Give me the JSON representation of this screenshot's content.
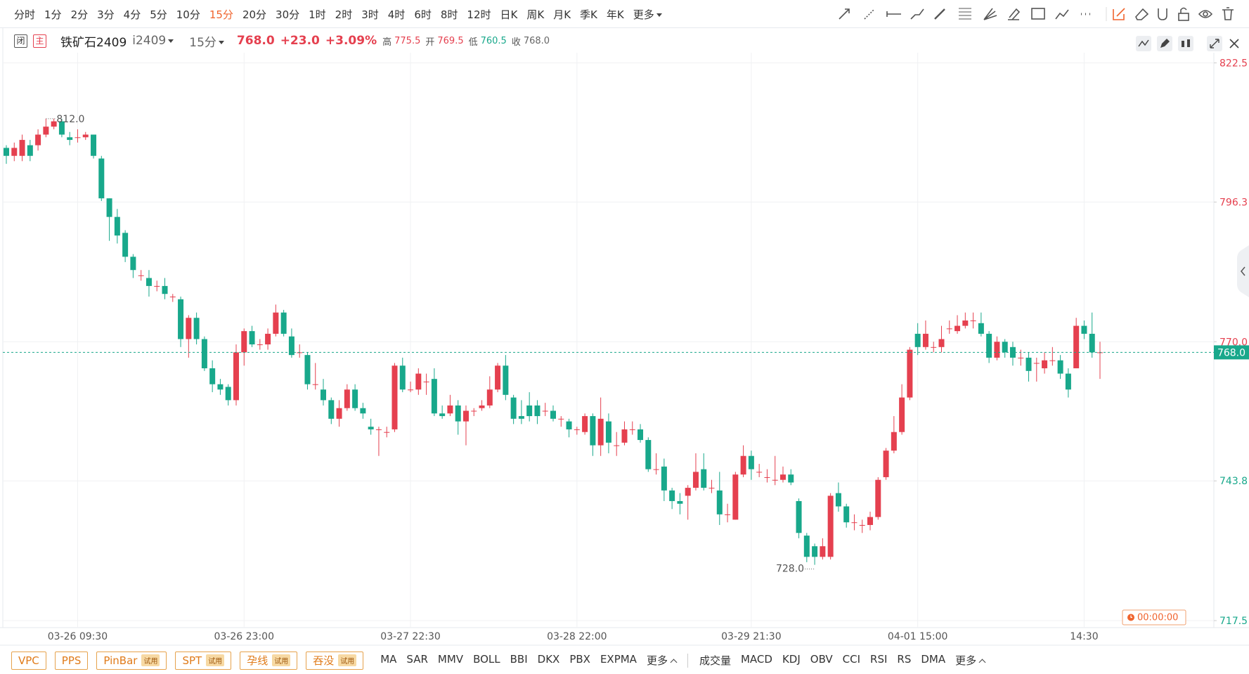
{
  "toolbar": {
    "periods": [
      "分时",
      "1分",
      "2分",
      "3分",
      "4分",
      "5分",
      "10分",
      "15分",
      "20分",
      "30分",
      "1时",
      "2时",
      "3时",
      "4时",
      "6时",
      "8时",
      "12时",
      "日K",
      "周K",
      "月K",
      "季K",
      "年K"
    ],
    "more": "更多"
  },
  "header": {
    "badges": [
      "闭",
      "主"
    ],
    "name": "铁矿石2409",
    "code": "i2409",
    "period": "15分",
    "price": "768.0",
    "change": "+23.0",
    "pct": "+3.09%",
    "stats": [
      {
        "label": "高",
        "value": "775.5",
        "color": "#e5404f"
      },
      {
        "label": "开",
        "value": "769.5",
        "color": "#e5404f"
      },
      {
        "label": "低",
        "value": "760.5",
        "color": "#18a88b"
      },
      {
        "label": "收",
        "value": "768.0",
        "color": "#666666"
      }
    ]
  },
  "chart_data": {
    "type": "candlestick",
    "x": [
      null,
      null,
      null,
      null,
      null,
      null,
      null,
      null,
      null,
      "03-26 09:30",
      null,
      null,
      null,
      null,
      null,
      null,
      null,
      null,
      null,
      null,
      null,
      null,
      null,
      null,
      null,
      null,
      null,
      null,
      null,
      null,
      "03-26 23:00",
      null,
      null,
      null,
      null,
      null,
      null,
      null,
      null,
      null,
      null,
      null,
      null,
      null,
      null,
      null,
      null,
      null,
      null,
      null,
      null,
      "03-27 22:30",
      null,
      null,
      null,
      null,
      null,
      null,
      null,
      null,
      null,
      null,
      null,
      null,
      null,
      null,
      null,
      null,
      null,
      null,
      null,
      null,
      "03-28 22:00",
      null,
      null,
      null,
      null,
      null,
      null,
      null,
      null,
      null,
      null,
      null,
      null,
      null,
      null,
      null,
      null,
      null,
      null,
      null,
      null,
      null,
      "03-29 21:30",
      null,
      null,
      null,
      null,
      null,
      null,
      null,
      null,
      null,
      null,
      null,
      null,
      null,
      null,
      null,
      null,
      null,
      null,
      null,
      null,
      "04-01 15:00",
      null,
      null,
      null,
      null,
      null,
      null,
      null,
      null,
      null,
      null,
      null,
      null,
      null,
      null,
      null,
      null,
      null,
      null,
      null,
      null,
      "14:30",
      null,
      null
    ],
    "open": [
      806.5,
      805,
      805,
      807,
      807,
      809,
      810.5,
      811.5,
      808.5,
      808.5,
      808.5,
      809,
      804.5,
      797,
      793.5,
      790.5,
      786,
      782.5,
      782,
      780.5,
      780.5,
      778.5,
      778,
      770.5,
      774.5,
      770.5,
      765,
      762,
      761.5,
      759,
      768,
      772,
      769.5,
      769.5,
      771.5,
      775.5,
      771,
      768,
      767.5,
      762,
      761,
      759,
      755.5,
      757.5,
      761,
      757.5,
      754,
      753.5,
      753,
      753.5,
      765.5,
      761,
      761,
      762.5,
      763,
      756.5,
      756.5,
      758,
      755,
      757,
      757.5,
      758,
      761,
      765.5,
      759.5,
      756,
      758,
      758,
      757,
      757,
      755.5,
      755,
      753.5,
      753,
      756,
      750.5,
      755,
      750.5,
      751,
      753.5,
      753.5,
      751.5,
      746,
      746.5,
      742,
      740,
      741,
      742.5,
      746,
      742.5,
      742,
      737.5,
      736.5,
      745,
      748.5,
      745.5,
      744.5,
      744,
      744,
      745,
      740,
      733.5,
      731.5,
      729.5,
      729.5,
      741.5,
      739,
      736,
      735.5,
      735.5,
      737,
      744.5,
      749.5,
      753,
      759.5,
      771.5,
      769,
      769,
      769,
      772.5,
      772,
      773,
      774,
      773.5,
      771.5,
      767,
      770,
      769,
      767,
      767,
      766,
      765,
      766.5,
      766.5,
      764,
      765,
      773,
      771.5,
      768
    ],
    "high": [
      807,
      807.5,
      809,
      808,
      810,
      812,
      812,
      812,
      809.5,
      810,
      809.5,
      809,
      805,
      797,
      795,
      791,
      786.5,
      783.5,
      783.5,
      781.5,
      782,
      779,
      778.5,
      775,
      775.5,
      771,
      766.5,
      763,
      762,
      769.5,
      772.5,
      773,
      770.5,
      772.5,
      777,
      776,
      772.5,
      769.5,
      768,
      766,
      763,
      759.5,
      759,
      762,
      762,
      758.5,
      755.5,
      754,
      754,
      766,
      767,
      762.5,
      765,
      764,
      765,
      758,
      760,
      759,
      758,
      757.5,
      759,
      763.5,
      766,
      767.5,
      760,
      759,
      760.5,
      759,
      758.5,
      758,
      756,
      755.5,
      754,
      756.5,
      756.5,
      759.5,
      756.5,
      753,
      755,
      755,
      754.5,
      752,
      749,
      748,
      742.5,
      741.5,
      743,
      749,
      749,
      744,
      745.5,
      739.5,
      745.5,
      750.5,
      749.5,
      747,
      746,
      748.5,
      746.5,
      746,
      740.5,
      734,
      732,
      733,
      741.5,
      743.5,
      739.5,
      737.5,
      736.5,
      738,
      744.5,
      750,
      756,
      762,
      769,
      773.5,
      774,
      770,
      773,
      774,
      775,
      775.5,
      775.5,
      775.5,
      772,
      771,
      770.5,
      770,
      768.5,
      768,
      767,
      768,
      769,
      767.5,
      765,
      774.5,
      774,
      775.5,
      770
    ],
    "low": [
      803.5,
      804,
      804,
      804,
      806,
      808.5,
      810,
      808.5,
      807,
      807.5,
      808,
      804.5,
      796.5,
      789,
      788.5,
      785,
      782,
      781.5,
      778.5,
      779.5,
      778,
      777.5,
      769,
      767,
      769.5,
      764.5,
      760.5,
      760,
      758,
      758,
      765.5,
      769,
      768.5,
      768.5,
      771,
      771,
      767,
      767,
      761,
      761,
      758,
      754.5,
      754,
      757,
      757,
      755.5,
      752.5,
      748.5,
      752,
      753,
      760.5,
      760.5,
      760,
      760,
      756,
      755.5,
      756,
      752.5,
      750.5,
      756,
      757,
      757.5,
      760.5,
      759,
      754.5,
      754.5,
      755,
      754.5,
      756,
      755,
      754,
      752,
      752.5,
      752.5,
      748.5,
      748.5,
      749,
      748.5,
      750.5,
      752.5,
      751,
      745.5,
      745,
      740,
      738.5,
      737.5,
      736.5,
      742,
      742,
      741.5,
      735.5,
      736,
      736.5,
      744.5,
      744,
      744.5,
      743.5,
      743,
      743.5,
      743,
      733,
      728.5,
      728,
      729,
      729,
      738,
      735,
      734.5,
      734,
      734.5,
      736.5,
      744,
      749,
      752.5,
      759,
      767.5,
      768.5,
      768,
      768,
      771.5,
      771.5,
      772.5,
      772.5,
      771,
      766,
      766.5,
      767,
      765.5,
      765.5,
      762.5,
      762.5,
      764,
      765.5,
      763,
      759.5,
      765,
      770.5,
      767,
      763
    ],
    "close": [
      805,
      806.5,
      808,
      805,
      809,
      810.5,
      811.5,
      809,
      808,
      808.5,
      809,
      805,
      797,
      793.5,
      790,
      786,
      783.5,
      782.5,
      780.5,
      780.5,
      779,
      778.5,
      770.5,
      774.5,
      770.5,
      765,
      762,
      761,
      759,
      768,
      772,
      769.5,
      769.5,
      771.5,
      775.5,
      771.5,
      767.5,
      768,
      762,
      762,
      759,
      755.5,
      757.5,
      761,
      757.5,
      756.5,
      753.5,
      753.5,
      753,
      765.5,
      761,
      761,
      764,
      762.5,
      756.5,
      756,
      758,
      755,
      757,
      757,
      758,
      761,
      765.5,
      760,
      755.5,
      755.5,
      756,
      756,
      757,
      755.5,
      755.5,
      753.5,
      753.5,
      756,
      750.5,
      755.5,
      751,
      750.5,
      753.5,
      753.5,
      751.5,
      746,
      746,
      742,
      740,
      739.5,
      742.5,
      745.5,
      742.5,
      742.5,
      737.5,
      737.5,
      745,
      748.5,
      746,
      745.5,
      744.5,
      744,
      745,
      743.5,
      734,
      729.5,
      729.5,
      731.5,
      741,
      739,
      736,
      736,
      735.5,
      737,
      744,
      749.5,
      753,
      759.5,
      768.5,
      769,
      771.5,
      769,
      770.5,
      772.5,
      773,
      774,
      774,
      771.5,
      767,
      770,
      768,
      767,
      767,
      764.5,
      766,
      766.5,
      766.5,
      764,
      761,
      773,
      771.5,
      768,
      768
    ],
    "ylim": [
      717.5,
      822.5
    ],
    "yticks": [
      822.5,
      796.3,
      {
        "value": 770,
        "label": "770.0"
      },
      743.8,
      717.5
    ],
    "ytick_colors": [
      "#e5404f",
      "#e5404f",
      "#e5404f",
      "#18a88b",
      "#18a88b"
    ],
    "colors": {
      "up": "#e5404f",
      "down": "#18a88b",
      "last": "#18a88b"
    },
    "grid": true,
    "annotations": {
      "max": "812.0",
      "min": "728.0"
    }
  },
  "timer": "00:00:00",
  "bottom": {
    "tools": [
      {
        "name": "VPC"
      },
      {
        "name": "PPS"
      },
      {
        "name": "PinBar",
        "tag": "试用"
      },
      {
        "name": "SPT",
        "tag": "试用"
      },
      {
        "name": "孕线",
        "tag": "试用"
      },
      {
        "name": "吞没",
        "tag": "试用"
      }
    ],
    "main": [
      "MA",
      "SAR",
      "MMV",
      "BOLL",
      "BBI",
      "DKX",
      "PBX",
      "EXPMA"
    ],
    "sub": [
      "成交量",
      "MACD",
      "KDJ",
      "OBV",
      "CCI",
      "RSI",
      "RS",
      "DMA"
    ],
    "more": "更多"
  }
}
